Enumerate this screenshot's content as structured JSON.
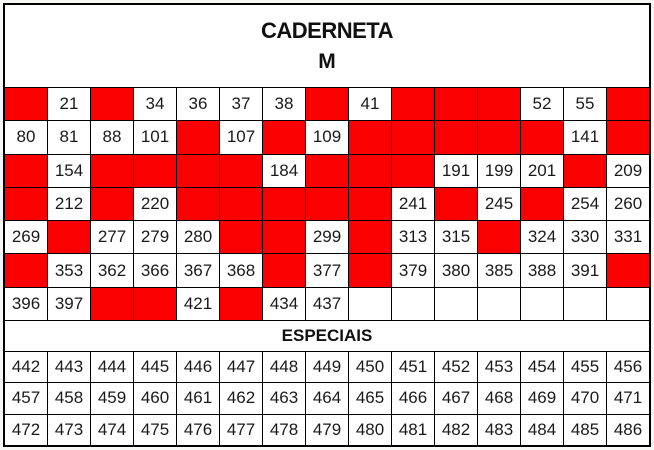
{
  "title": {
    "line1": "CADERNETA",
    "line2": "M"
  },
  "sections": {
    "especiais_label": "ESPECIAIS"
  },
  "colors": {
    "cell_red": "#fb0000",
    "grid_line": "#000000",
    "text": "#1a1a1a",
    "background": "#ffffff"
  },
  "main_grid": {
    "columns": 15,
    "rows": [
      [
        "RED",
        "21",
        "RED",
        "34",
        "36",
        "37",
        "38",
        "RED",
        "41",
        "RED",
        "RED",
        "RED",
        "52",
        "55",
        "RED"
      ],
      [
        "80",
        "81",
        "88",
        "101",
        "RED",
        "107",
        "RED",
        "109",
        "RED",
        "RED",
        "RED",
        "RED",
        "RED",
        "141",
        "RED"
      ],
      [
        "RED",
        "154",
        "RED",
        "RED",
        "RED",
        "RED",
        "184",
        "RED",
        "RED",
        "RED",
        "191",
        "199",
        "201",
        "RED",
        "209"
      ],
      [
        "RED",
        "212",
        "RED",
        "220",
        "RED",
        "RED",
        "RED",
        "RED",
        "RED",
        "241",
        "RED",
        "245",
        "RED",
        "254",
        "260"
      ],
      [
        "269",
        "RED",
        "277",
        "279",
        "280",
        "RED",
        "RED",
        "299",
        "RED",
        "313",
        "315",
        "RED",
        "324",
        "330",
        "331"
      ],
      [
        "RED",
        "353",
        "362",
        "366",
        "367",
        "368",
        "RED",
        "377",
        "RED",
        "379",
        "380",
        "385",
        "388",
        "391",
        "RED"
      ],
      [
        "396",
        "397",
        "RED",
        "RED",
        "421",
        "RED",
        "434",
        "437",
        "",
        "",
        "",
        "",
        "",
        "",
        ""
      ]
    ]
  },
  "especiais_grid": {
    "columns": 15,
    "rows": [
      [
        "442",
        "443",
        "444",
        "445",
        "446",
        "447",
        "448",
        "449",
        "450",
        "451",
        "452",
        "453",
        "454",
        "455",
        "456"
      ],
      [
        "457",
        "458",
        "459",
        "460",
        "461",
        "462",
        "463",
        "464",
        "465",
        "466",
        "467",
        "468",
        "469",
        "470",
        "471"
      ],
      [
        "472",
        "473",
        "474",
        "475",
        "476",
        "477",
        "478",
        "479",
        "480",
        "481",
        "482",
        "483",
        "484",
        "485",
        "486"
      ]
    ]
  }
}
